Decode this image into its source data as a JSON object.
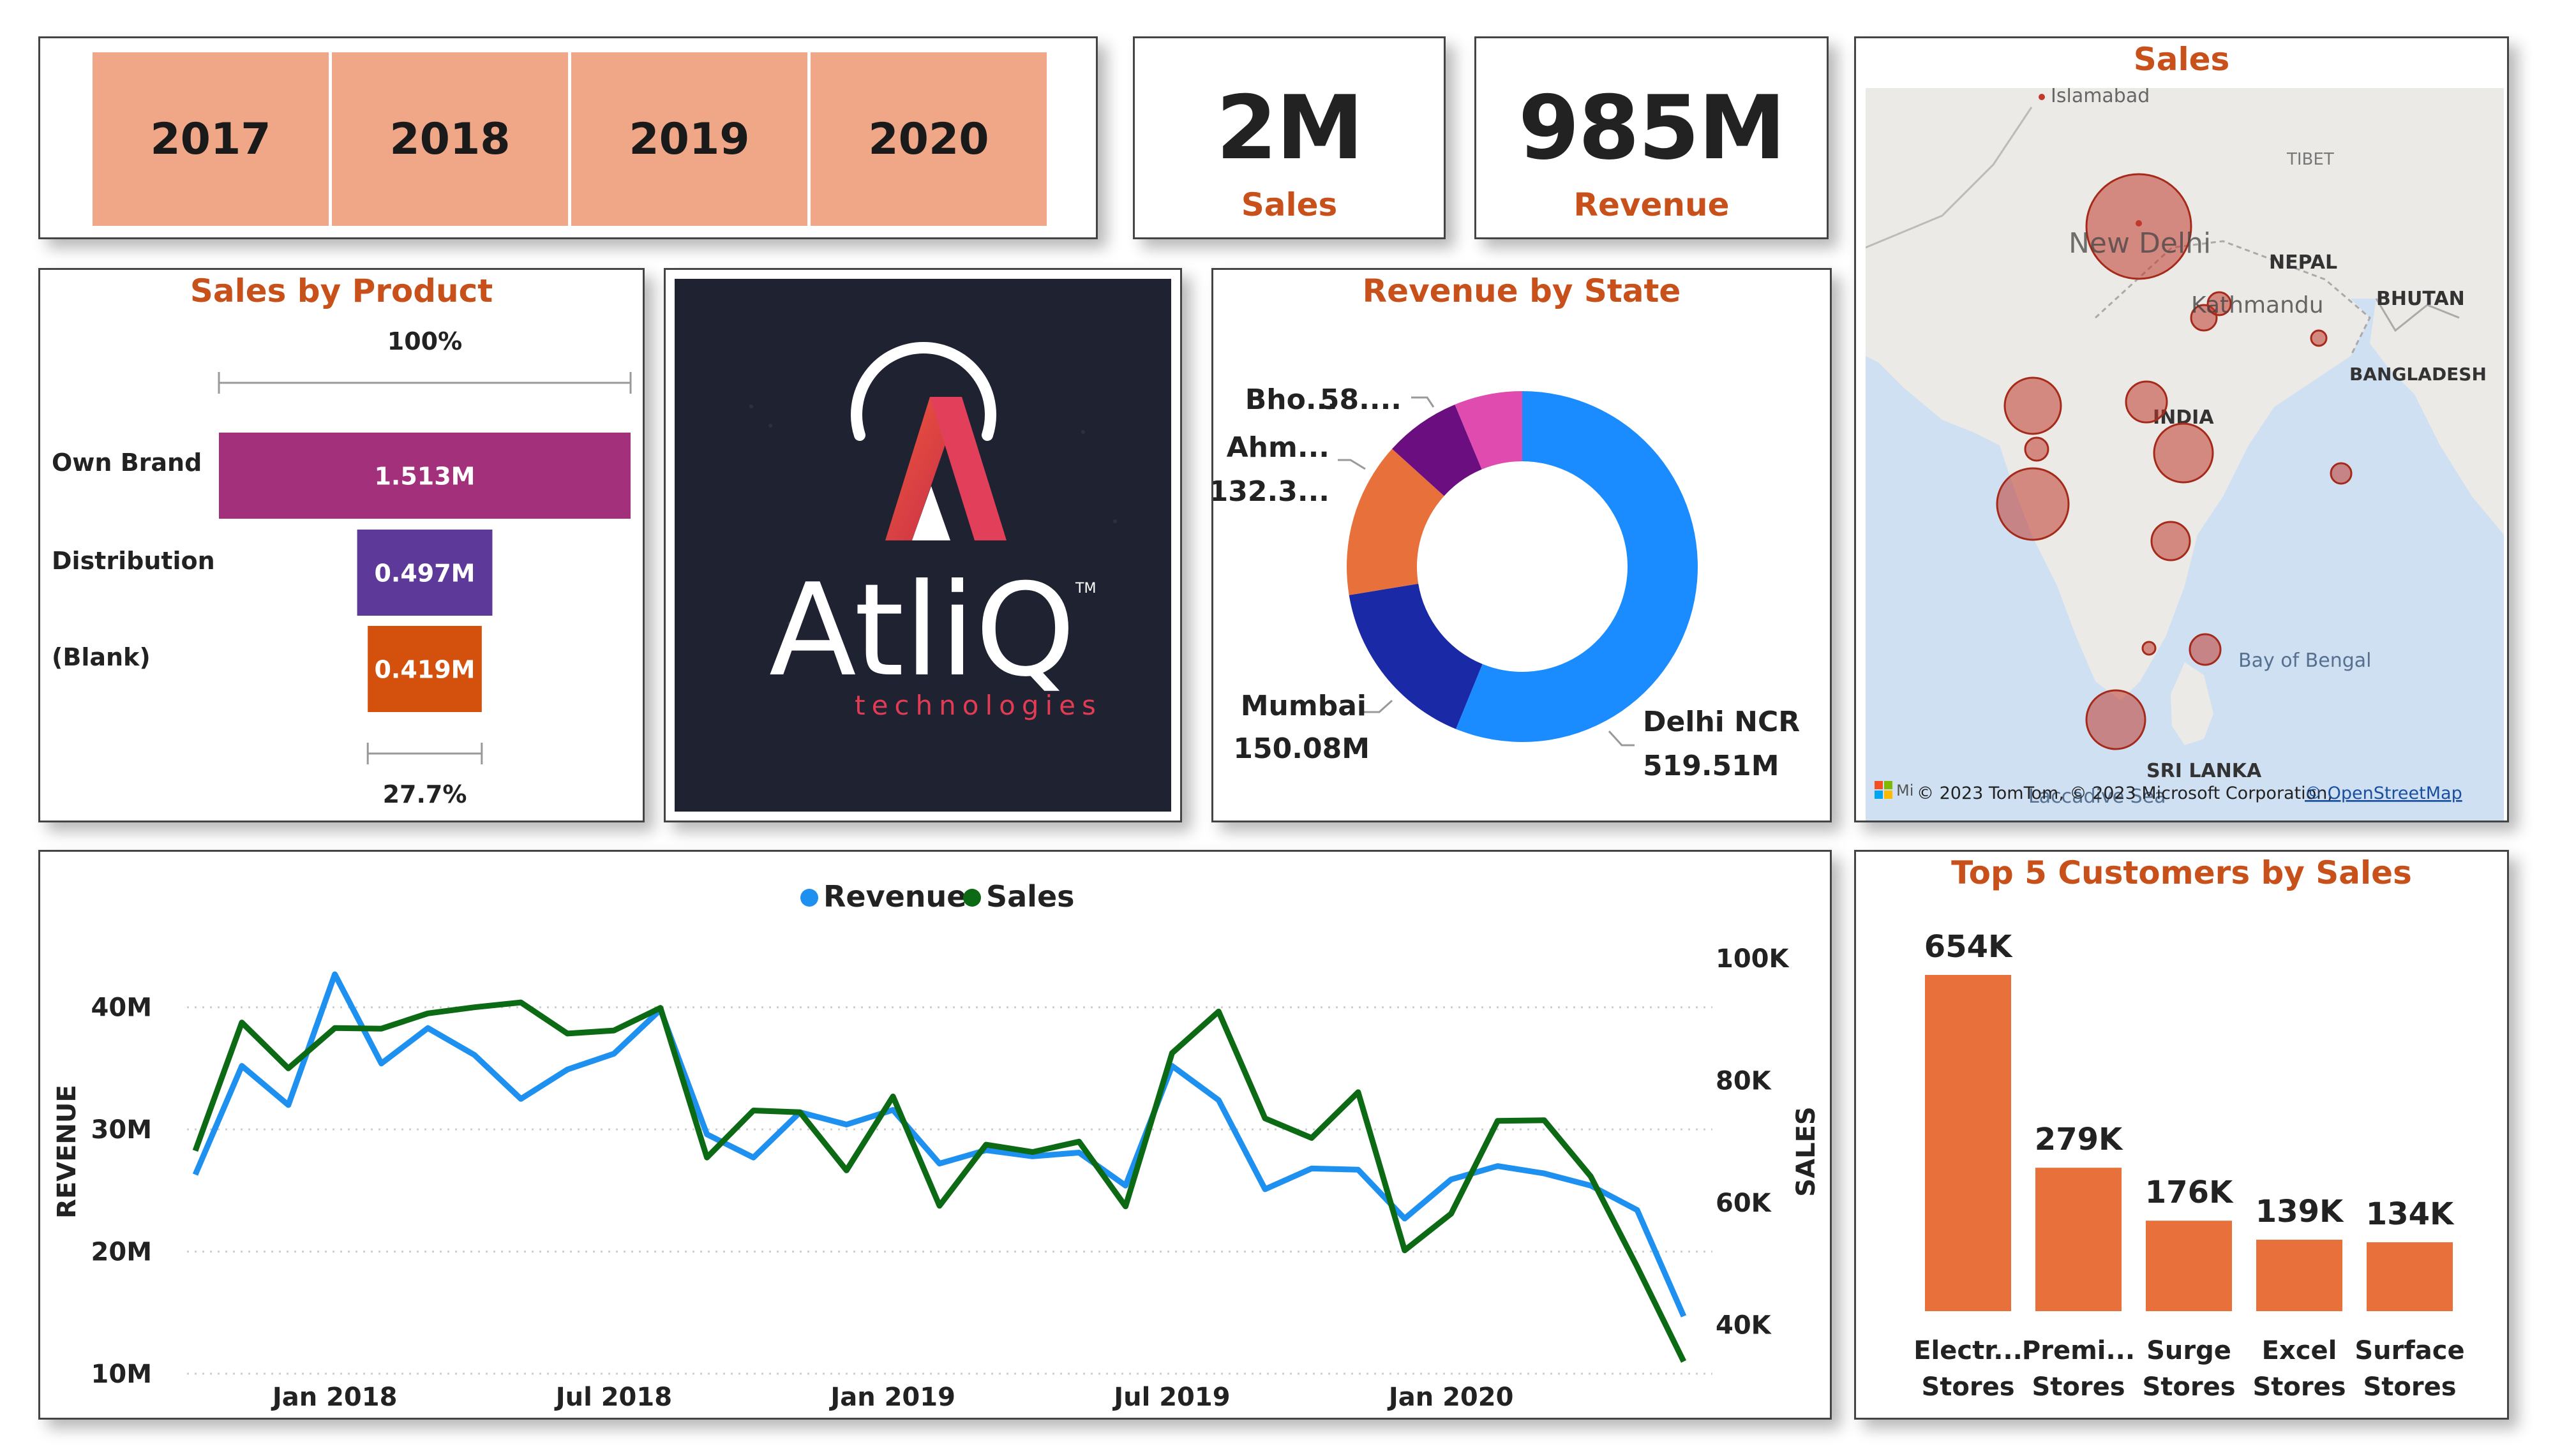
{
  "years": [
    "2017",
    "2018",
    "2019",
    "2020"
  ],
  "kpis": {
    "sales_value": "2M",
    "sales_label": "Sales",
    "revenue_value": "985M",
    "revenue_label": "Revenue"
  },
  "map": {
    "title": "Sales",
    "places": {
      "islamabad": "Islamabad",
      "tibet": "TIBET",
      "new_delhi": "New Delhi",
      "nepal": "NEPAL",
      "kathmandu": "Kathmandu",
      "bhutan": "BHUTAN",
      "bangladesh": "BANGLADESH",
      "india": "INDIA",
      "bay_of_bengal": "Bay of Bengal",
      "sri_lanka": "SRI LANKA",
      "laccadive_sea": "Laccadive Sea"
    },
    "attribution": "© 2023 TomTom, © 2023 Microsoft Corporation,",
    "attribution_link": "© OpenStreetMap",
    "ms_label": "Mi"
  },
  "logo": {
    "name": "AtliQ",
    "tagline": "technologies",
    "tm": "TM"
  },
  "chart_data": [
    {
      "type": "bar",
      "orientation": "horizontal-funnel",
      "title": "Sales by Product",
      "categories": [
        "Own Brand",
        "Distribution",
        "(Blank)"
      ],
      "values": [
        1.513,
        0.497,
        0.419
      ],
      "value_labels": [
        "1.513M",
        "0.497M",
        "0.419M"
      ],
      "colors": [
        "#a3307a",
        "#5d3a9a",
        "#d4500d"
      ],
      "top_percent_label": "100%",
      "bottom_percent_label": "27.7%"
    },
    {
      "type": "pie",
      "donut": true,
      "title": "Revenue by State",
      "slices": [
        {
          "name": "Delhi NCR",
          "value": 519.51,
          "label": "519.51M",
          "color": "#1a8cff"
        },
        {
          "name": "Mumbai",
          "value": 150.08,
          "label": "150.08M",
          "color": "#1a2aa6"
        },
        {
          "name": "Ahm...",
          "value": 132.3,
          "label": "132.3...",
          "color": "#e8703a"
        },
        {
          "name": "",
          "value": 65,
          "label": "",
          "color": "#6b0f80"
        },
        {
          "name": "Bho...",
          "value": 58,
          "label": "58....",
          "color": "#e04bb0"
        }
      ]
    },
    {
      "type": "line",
      "legend": [
        "Revenue",
        "Sales"
      ],
      "legend_position": "top-center",
      "ylabel": "REVENUE",
      "y2label": "SALES",
      "ylim": [
        10,
        45
      ],
      "yticks": [
        "10M",
        "20M",
        "30M",
        "40M"
      ],
      "ytick_values": [
        10,
        20,
        30,
        40
      ],
      "y2lim": [
        32,
        102
      ],
      "y2ticks": [
        "40K",
        "60K",
        "80K",
        "100K"
      ],
      "y2tick_values": [
        40,
        60,
        80,
        100
      ],
      "xticks": [
        "Jan 2018",
        "Jul 2018",
        "Jan 2019",
        "Jul 2019",
        "Jan 2020"
      ],
      "xtick_index": [
        3,
        9,
        15,
        21,
        27
      ],
      "x": [
        "Oct 2017",
        "Nov 2017",
        "Dec 2017",
        "Jan 2018",
        "Feb 2018",
        "Mar 2018",
        "Apr 2018",
        "May 2018",
        "Jun 2018",
        "Jul 2018",
        "Aug 2018",
        "Sep 2018",
        "Oct 2018",
        "Nov 2018",
        "Dec 2018",
        "Jan 2019",
        "Feb 2019",
        "Mar 2019",
        "Apr 2019",
        "May 2019",
        "Jun 2019",
        "Jul 2019",
        "Aug 2019",
        "Sep 2019",
        "Oct 2019",
        "Nov 2019",
        "Dec 2019",
        "Jan 2020",
        "Feb 2020",
        "Mar 2020",
        "Apr 2020",
        "May 2020",
        "Jun 2020"
      ],
      "series": [
        {
          "name": "Revenue",
          "axis": "left",
          "color": "#1e90f0",
          "values": [
            26.3,
            35.2,
            32.0,
            42.7,
            35.4,
            38.3,
            36.1,
            32.5,
            34.9,
            36.2,
            39.8,
            29.6,
            27.7,
            31.4,
            30.4,
            31.6,
            27.2,
            28.3,
            27.8,
            28.1,
            25.4,
            35.2,
            32.4,
            25.1,
            26.8,
            26.7,
            22.7,
            25.9,
            27.0,
            26.4,
            25.4,
            23.4,
            14.7
          ]
        },
        {
          "name": "Sales",
          "axis": "right",
          "color": "#0c6a14",
          "values": [
            68.5,
            89.5,
            82.0,
            88.6,
            88.5,
            91.0,
            92.0,
            92.8,
            87.7,
            88.2,
            91.9,
            67.4,
            75.1,
            74.8,
            65.3,
            77.4,
            59.5,
            69.5,
            68.3,
            70.0,
            59.4,
            84.5,
            91.3,
            73.8,
            70.6,
            78.1,
            52.2,
            58.2,
            73.4,
            73.5,
            64.3,
            49.5,
            34.0
          ]
        }
      ]
    },
    {
      "type": "bar",
      "title": "Top 5 Customers by Sales",
      "categories": [
        "Electr... Stores",
        "Premi... Stores",
        "Surge Stores",
        "Excel Stores",
        "Surface Stores"
      ],
      "category_lines": [
        [
          "Electr...",
          "Stores"
        ],
        [
          "Premi...",
          "Stores"
        ],
        [
          "Surge",
          "Stores"
        ],
        [
          "Excel",
          "Stores"
        ],
        [
          "Surface",
          "Stores"
        ]
      ],
      "values": [
        654,
        279,
        176,
        139,
        134
      ],
      "value_labels": [
        "654K",
        "279K",
        "176K",
        "139K",
        "134K"
      ],
      "color": "#e8703a"
    }
  ],
  "colors": {
    "accent": "#c8501a",
    "slicer": "#f0a788"
  }
}
